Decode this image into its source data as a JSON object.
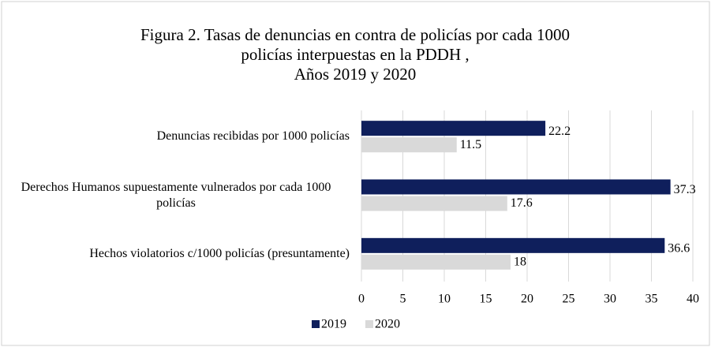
{
  "chart_data": {
    "type": "bar",
    "orientation": "horizontal",
    "title": [
      "Figura 2. Tasas de denuncias en contra de  policías por cada 1000",
      "policías interpuestas en la PDDH ,",
      "Años 2019 y 2020"
    ],
    "categories": [
      "Denuncias recibidas por 1000 policías",
      "Derechos Humanos supuestamente vulnerados por cada 1000 policías",
      "Hechos violatorios  c/1000 policías (presuntamente)"
    ],
    "series": [
      {
        "name": "2019",
        "color": "#0f1f5c",
        "values": [
          22.2,
          37.3,
          36.6
        ]
      },
      {
        "name": "2020",
        "color": "#d9d9d9",
        "values": [
          11.5,
          17.6,
          18
        ]
      }
    ],
    "xlim": [
      0,
      40
    ],
    "xticks": [
      0,
      5,
      10,
      15,
      20,
      25,
      30,
      35,
      40
    ],
    "grid": true,
    "legend": "bottom"
  }
}
